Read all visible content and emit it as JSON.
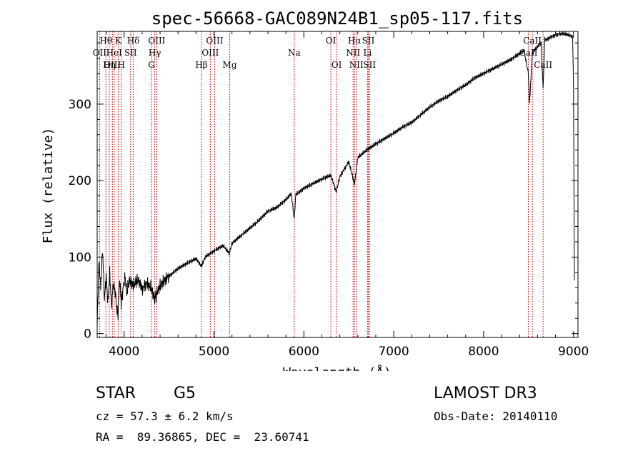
{
  "chart_data": {
    "type": "line",
    "title": "spec-56668-GAC089N24B1_sp05-117.fits",
    "xlabel": "Wavelength (Å)",
    "ylabel": "Flux (relative)",
    "xlim": [
      3700,
      9050
    ],
    "ylim": [
      -5,
      395
    ],
    "xticks": [
      4000,
      5000,
      6000,
      7000,
      8000,
      9000
    ],
    "yticks": [
      0,
      100,
      200,
      300
    ],
    "grid": false,
    "series": [
      {
        "name": "flux",
        "color": "#000000",
        "x": [
          3700,
          3720,
          3740,
          3760,
          3780,
          3800,
          3820,
          3840,
          3860,
          3880,
          3900,
          3920,
          3933,
          3950,
          3968,
          3990,
          4010,
          4030,
          4060,
          4101,
          4130,
          4160,
          4200,
          4250,
          4300,
          4340,
          4370,
          4400,
          4450,
          4500,
          4600,
          4700,
          4800,
          4861,
          4900,
          5000,
          5100,
          5170,
          5200,
          5300,
          5400,
          5500,
          5600,
          5700,
          5800,
          5860,
          5893,
          5910,
          5950,
          6000,
          6100,
          6200,
          6300,
          6360,
          6400,
          6450,
          6500,
          6563,
          6600,
          6650,
          6700,
          6800,
          6900,
          7000,
          7100,
          7200,
          7300,
          7400,
          7500,
          7600,
          7700,
          7800,
          7900,
          8000,
          8100,
          8200,
          8300,
          8400,
          8450,
          8498,
          8510,
          8542,
          8560,
          8600,
          8640,
          8662,
          8680,
          8700,
          8750,
          8800,
          8850,
          8900,
          8950,
          8990,
          9000,
          9010
        ],
        "y": [
          10,
          95,
          60,
          110,
          45,
          75,
          40,
          80,
          35,
          65,
          55,
          30,
          25,
          70,
          40,
          60,
          75,
          55,
          70,
          62,
          68,
          70,
          58,
          66,
          60,
          45,
          55,
          62,
          70,
          75,
          85,
          92,
          98,
          88,
          100,
          108,
          115,
          105,
          118,
          128,
          138,
          148,
          160,
          165,
          175,
          183,
          150,
          182,
          185,
          190,
          196,
          202,
          207,
          185,
          205,
          215,
          225,
          195,
          230,
          235,
          240,
          248,
          255,
          262,
          270,
          276,
          286,
          296,
          304,
          310,
          318,
          325,
          334,
          340,
          346,
          352,
          358,
          366,
          370,
          340,
          300,
          365,
          370,
          375,
          380,
          320,
          385,
          384,
          388,
          390,
          392,
          392,
          390,
          388,
          330,
          70
        ]
      }
    ],
    "lines": [
      {
        "name": "OII",
        "lam": 3727,
        "row": 2
      },
      {
        "name": "Hθ",
        "lam": 3797,
        "row": 1
      },
      {
        "name": "OIII",
        "lam": 3869,
        "row": 3
      },
      {
        "name": "Hη",
        "lam": 3835,
        "row": 3
      },
      {
        "name": "HeI",
        "lam": 3889,
        "row": 2
      },
      {
        "name": "K",
        "lam": 3934,
        "row": 1
      },
      {
        "name": "SII",
        "lam": 4072,
        "row": 2
      },
      {
        "name": "H",
        "lam": 3968,
        "row": 3
      },
      {
        "name": "Hδ",
        "lam": 4102,
        "row": 1
      },
      {
        "name": "OIII",
        "lam": 4363,
        "row": 1
      },
      {
        "name": "Hγ",
        "lam": 4341,
        "row": 2
      },
      {
        "name": "G",
        "lam": 4305,
        "row": 3
      },
      {
        "name": "Hβ",
        "lam": 4861,
        "row": 3
      },
      {
        "name": "OIII",
        "lam": 5007,
        "row": 1
      },
      {
        "name": "OIII",
        "lam": 4959,
        "row": 2
      },
      {
        "name": "Mg",
        "lam": 5175,
        "row": 3
      },
      {
        "name": "Na",
        "lam": 5893,
        "row": 2
      },
      {
        "name": "OI",
        "lam": 6300,
        "row": 1
      },
      {
        "name": "OI",
        "lam": 6364,
        "row": 3
      },
      {
        "name": "Hα",
        "lam": 6563,
        "row": 1
      },
      {
        "name": "NII",
        "lam": 6548,
        "row": 2
      },
      {
        "name": "NII",
        "lam": 6584,
        "row": 3
      },
      {
        "name": "SII",
        "lam": 6717,
        "row": 1
      },
      {
        "name": "Li",
        "lam": 6708,
        "row": 2
      },
      {
        "name": "SII",
        "lam": 6731,
        "row": 3
      },
      {
        "name": "CaII",
        "lam": 8542,
        "row": 1
      },
      {
        "name": "CaII",
        "lam": 8498,
        "row": 2
      },
      {
        "name": "CaII",
        "lam": 8662,
        "row": 3
      }
    ],
    "line_color": "#cc0000"
  },
  "info": {
    "class": "STAR",
    "subclass": "G5",
    "survey": "LAMOST DR3",
    "cz": "cz = 57.3 ± 6.2 km/s",
    "obs_date": "Obs-Date: 20140110",
    "coords": "RA =  89.36865, DEC =  23.60741"
  }
}
